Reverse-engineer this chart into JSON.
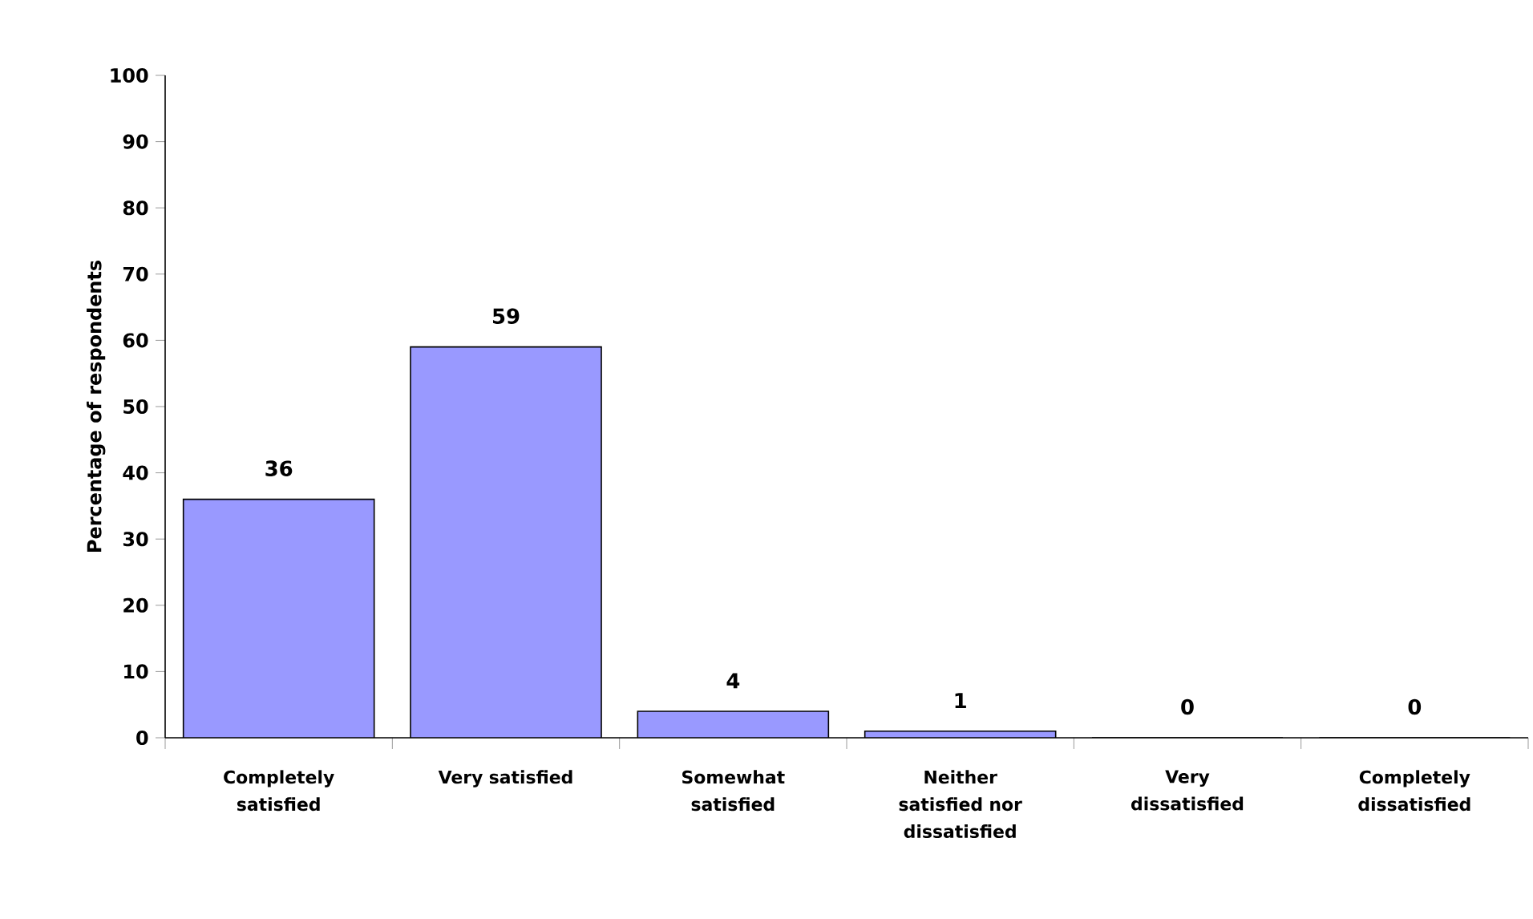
{
  "chart_data": {
    "type": "bar",
    "ylabel": "Percentage of respondents",
    "categories": [
      "Completely satisfied",
      "Very satisfied",
      "Somewhat satisfied",
      "Neither satisfied nor dissatisfied",
      "Very dissatisfied",
      "Completely dissatisfied"
    ],
    "values": [
      36,
      59,
      4,
      1,
      0,
      0
    ],
    "color": "#9999ff",
    "ylim": [
      0,
      100
    ],
    "yticks": [
      0,
      10,
      20,
      30,
      40,
      50,
      60,
      70,
      80,
      90,
      100
    ],
    "data_labels": true,
    "grid": false
  }
}
